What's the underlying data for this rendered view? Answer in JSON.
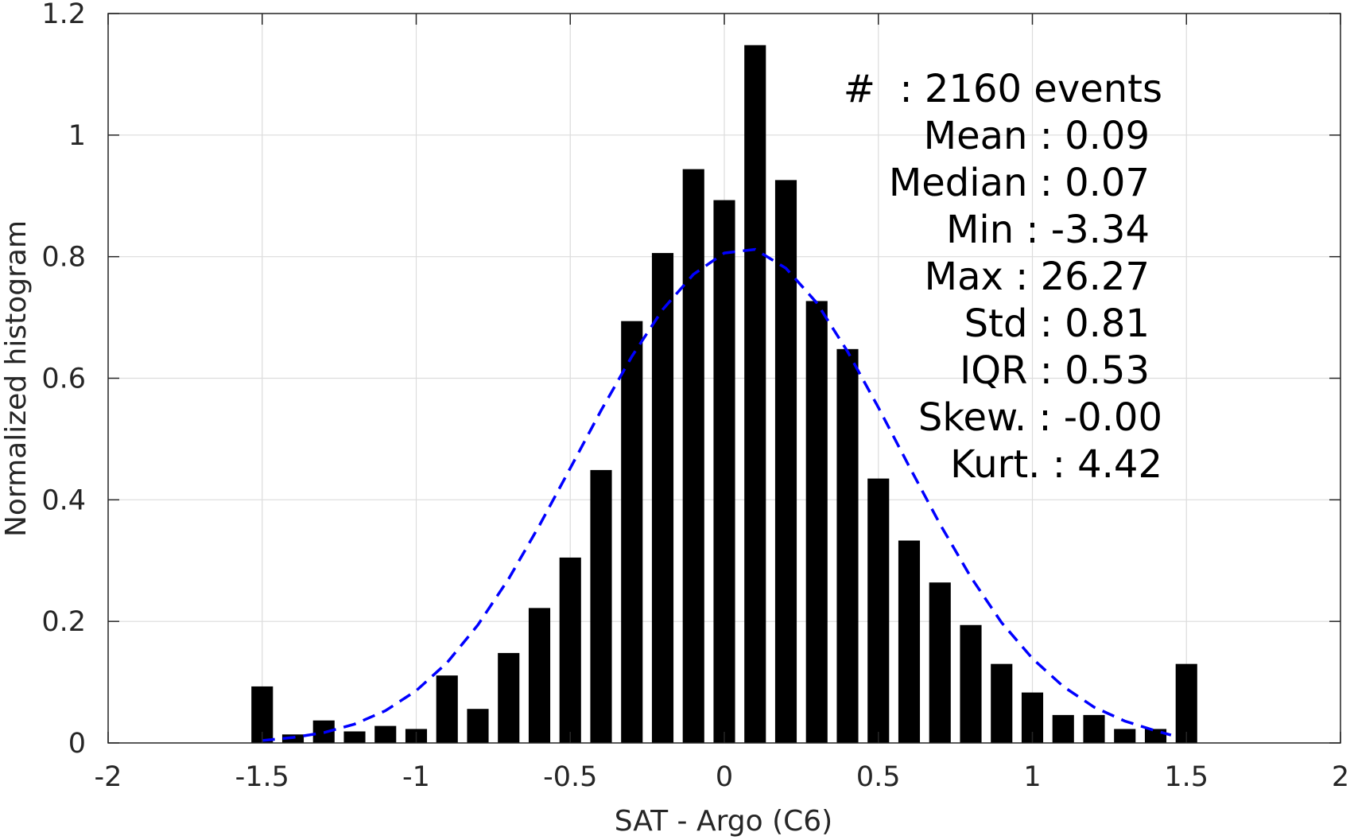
{
  "chart_data": {
    "type": "bar",
    "xlabel": "SAT - Argo (C6)",
    "ylabel": "Normalized histogram",
    "xlim": [
      -2,
      2
    ],
    "ylim": [
      0,
      1.2
    ],
    "xticks": [
      -2,
      -1.5,
      -1,
      -0.5,
      0,
      0.5,
      1,
      1.5,
      2
    ],
    "xtick_labels": [
      "-2",
      "-1.5",
      "-1",
      "-0.5",
      "0",
      "0.5",
      "1",
      "1.5",
      "2"
    ],
    "yticks": [
      0,
      0.2,
      0.4,
      0.6,
      0.8,
      1,
      1.2
    ],
    "ytick_labels": [
      "0",
      "0.2",
      "0.4",
      "0.6",
      "0.8",
      "1",
      "1.2"
    ],
    "grid": true,
    "bar_color": "#000000",
    "bar_width": 0.07,
    "series": [
      {
        "type": "bar",
        "x": [
          -1.5,
          -1.4,
          -1.3,
          -1.2,
          -1.1,
          -1.0,
          -0.9,
          -0.8,
          -0.7,
          -0.6,
          -0.5,
          -0.4,
          -0.3,
          -0.2,
          -0.1,
          0.0,
          0.1,
          0.2,
          0.3,
          0.4,
          0.5,
          0.6,
          0.7,
          0.8,
          0.9,
          1.0,
          1.1,
          1.2,
          1.3,
          1.4,
          1.5
        ],
        "values": [
          0.093,
          0.014,
          0.037,
          0.019,
          0.028,
          0.023,
          0.111,
          0.056,
          0.148,
          0.222,
          0.305,
          0.449,
          0.694,
          0.806,
          0.944,
          0.893,
          1.148,
          0.926,
          0.727,
          0.648,
          0.435,
          0.333,
          0.264,
          0.194,
          0.13,
          0.083,
          0.046,
          0.046,
          0.023,
          0.023,
          0.13
        ]
      },
      {
        "type": "line",
        "style": "dashed",
        "color": "#0000ff",
        "x": [
          -1.5,
          -1.4,
          -1.3,
          -1.2,
          -1.1,
          -1.0,
          -0.9,
          -0.8,
          -0.7,
          -0.6,
          -0.5,
          -0.4,
          -0.3,
          -0.2,
          -0.1,
          0.0,
          0.1,
          0.2,
          0.3,
          0.4,
          0.5,
          0.6,
          0.7,
          0.8,
          0.9,
          1.0,
          1.1,
          1.2,
          1.3,
          1.4,
          1.45
        ],
        "values": [
          0.004,
          0.009,
          0.017,
          0.031,
          0.053,
          0.086,
          0.132,
          0.194,
          0.27,
          0.358,
          0.452,
          0.547,
          0.636,
          0.713,
          0.771,
          0.806,
          0.812,
          0.781,
          0.724,
          0.644,
          0.552,
          0.455,
          0.36,
          0.273,
          0.198,
          0.139,
          0.093,
          0.059,
          0.036,
          0.02,
          0.013
        ]
      }
    ],
    "annotations": [
      "#  : 2160 events",
      "Mean : 0.09",
      "Median : 0.07",
      "Min : -3.34",
      "Max : 26.27",
      "Std : 0.81",
      "IQR : 0.53",
      "Skew. : -0.00",
      "Kurt. : 4.42"
    ]
  }
}
